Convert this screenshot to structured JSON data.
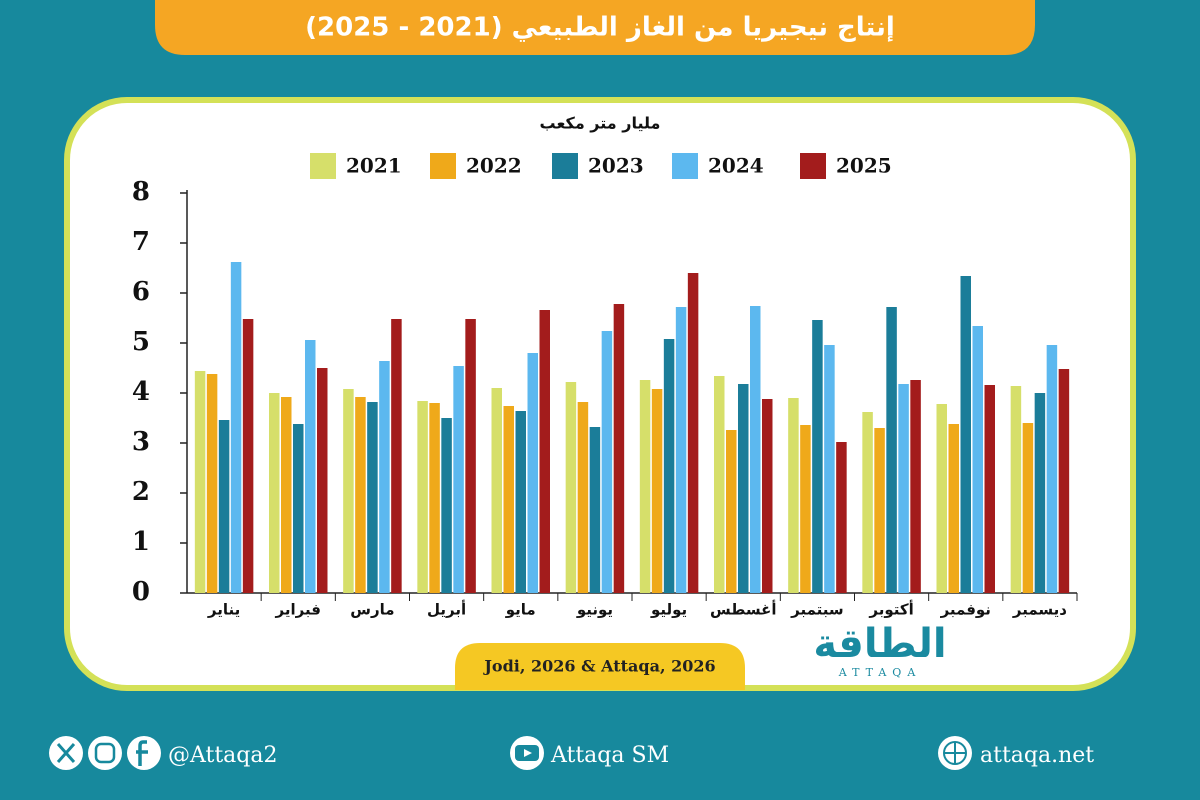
{
  "chart_data": {
    "type": "bar",
    "title": "إنتاج نيجيريا من الغاز الطبيعي (2021 - 2025)",
    "y_label": "مليار متر مكعب",
    "source": "Jodi, 2026 & Attaqa, 2026",
    "categories": [
      "يناير",
      "فبراير",
      "مارس",
      "أبريل",
      "مايو",
      "يونيو",
      "يوليو",
      "أغسطس",
      "سبتمبر",
      "أكتوبر",
      "نوفمبر",
      "ديسمبر"
    ],
    "series": [
      {
        "name": "2021",
        "color": "#d6df6a",
        "values": [
          4.44,
          4.0,
          4.08,
          3.84,
          4.1,
          4.22,
          4.26,
          4.34,
          3.9,
          3.62,
          3.78,
          4.14
        ]
      },
      {
        "name": "2022",
        "color": "#efa91a",
        "values": [
          4.38,
          3.92,
          3.92,
          3.8,
          3.74,
          3.82,
          4.08,
          3.26,
          3.36,
          3.3,
          3.38,
          3.4
        ]
      },
      {
        "name": "2023",
        "color": "#1b7d99",
        "values": [
          3.46,
          3.38,
          3.82,
          3.5,
          3.64,
          3.32,
          5.08,
          4.18,
          5.46,
          5.72,
          6.34,
          4.0
        ]
      },
      {
        "name": "2024",
        "color": "#5cb8ef",
        "values": [
          6.62,
          5.06,
          4.64,
          4.54,
          4.8,
          5.24,
          5.72,
          5.74,
          4.96,
          4.18,
          5.34,
          4.96
        ]
      },
      {
        "name": "2025",
        "color": "#a31c1c",
        "values": [
          5.48,
          4.5,
          5.48,
          5.48,
          5.66,
          5.78,
          6.4,
          3.88,
          3.02,
          4.26,
          4.16,
          4.48
        ]
      }
    ],
    "ylim": [
      0,
      8
    ],
    "yticks": [
      0,
      1,
      2,
      3,
      4,
      5,
      6,
      7,
      8
    ],
    "grid": false,
    "legend": "top"
  },
  "logo": {
    "text": "الطاقة",
    "latin": "ATTAQA"
  },
  "footer": {
    "social": "@Attaqa2",
    "youtube": "Attaqa SM",
    "website": "attaqa.net"
  }
}
